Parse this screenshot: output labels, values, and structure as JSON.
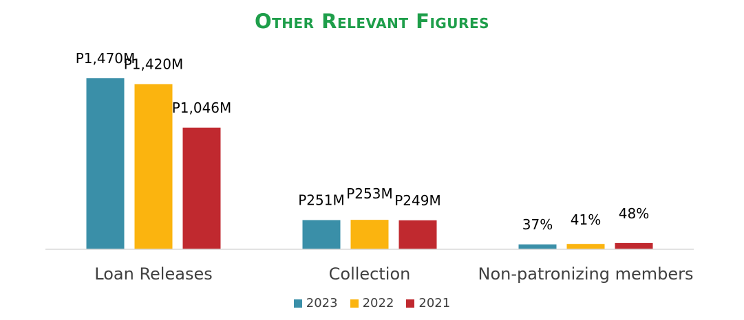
{
  "chart_data": {
    "type": "bar",
    "title": "Other Relevant Figures",
    "categories": [
      "Loan Releases",
      "Collection",
      "Non-patronizing members"
    ],
    "series": [
      {
        "name": "2023",
        "color": "#3a8fa8",
        "values": [
          1470,
          251,
          37
        ],
        "labels": [
          "P1,470M",
          "P251M",
          "37%"
        ]
      },
      {
        "name": "2022",
        "color": "#fbb40f",
        "values": [
          1420,
          253,
          41
        ],
        "labels": [
          "P1,420M",
          "P253M",
          "41%"
        ]
      },
      {
        "name": "2021",
        "color": "#c0292f",
        "values": [
          1046,
          249,
          48
        ],
        "labels": [
          "P1,046M",
          "P249M",
          "48%"
        ]
      }
    ],
    "xlabel": "",
    "ylabel": "",
    "grid": false,
    "legend_position": "bottom",
    "colors": {
      "title": "#1e9e4a",
      "axis": "#d9d9d9",
      "text": "#404040"
    }
  }
}
